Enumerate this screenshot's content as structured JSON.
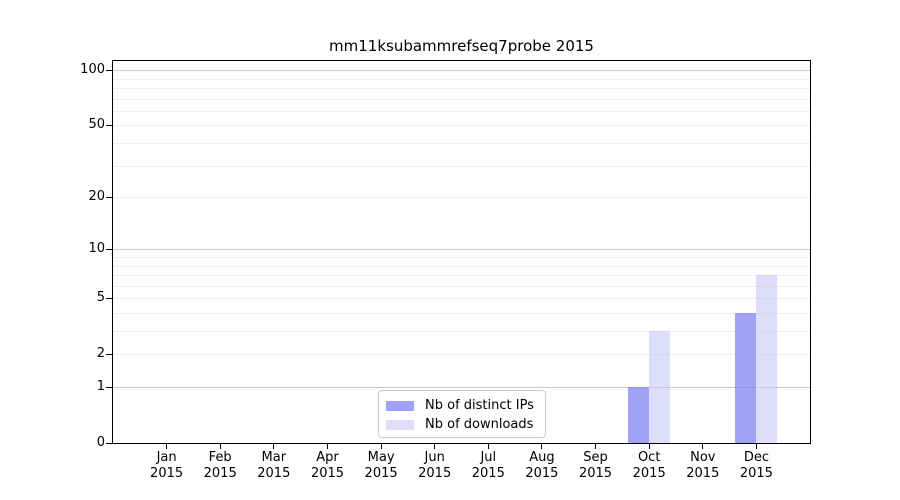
{
  "chart_data": {
    "type": "bar",
    "title": "mm11ksubammrefseq7probe 2015",
    "categories": [
      "Jan",
      "Feb",
      "Mar",
      "Apr",
      "May",
      "Jun",
      "Jul",
      "Aug",
      "Sep",
      "Oct",
      "Nov",
      "Dec"
    ],
    "tick_year": "2015",
    "series": [
      {
        "name": "Nb of distinct IPs",
        "key": "distinct-ips",
        "color": "#8282f2",
        "opacity": 0.75,
        "values": [
          0,
          0,
          0,
          0,
          0,
          0,
          0,
          0,
          0,
          1,
          0,
          4
        ]
      },
      {
        "name": "Nb of downloads",
        "key": "downloads",
        "color": "#c3c3f8",
        "opacity": 0.55,
        "values": [
          0,
          0,
          0,
          0,
          0,
          0,
          0,
          0,
          0,
          3,
          0,
          7
        ]
      }
    ],
    "y_axis": {
      "scale": "log1p",
      "ticks": [
        0,
        1,
        2,
        5,
        10,
        20,
        50,
        100
      ],
      "major_gridline_values": [
        1,
        10,
        100
      ],
      "minor_gridline_values": [
        2,
        3,
        4,
        5,
        6,
        7,
        8,
        9,
        20,
        30,
        40,
        50,
        60,
        70,
        80,
        90
      ],
      "top_value": 112
    },
    "grid": {
      "major_color": "#c8c8c8",
      "minor_color": "#ededed"
    },
    "legend": {
      "position": "bottom-center"
    }
  }
}
